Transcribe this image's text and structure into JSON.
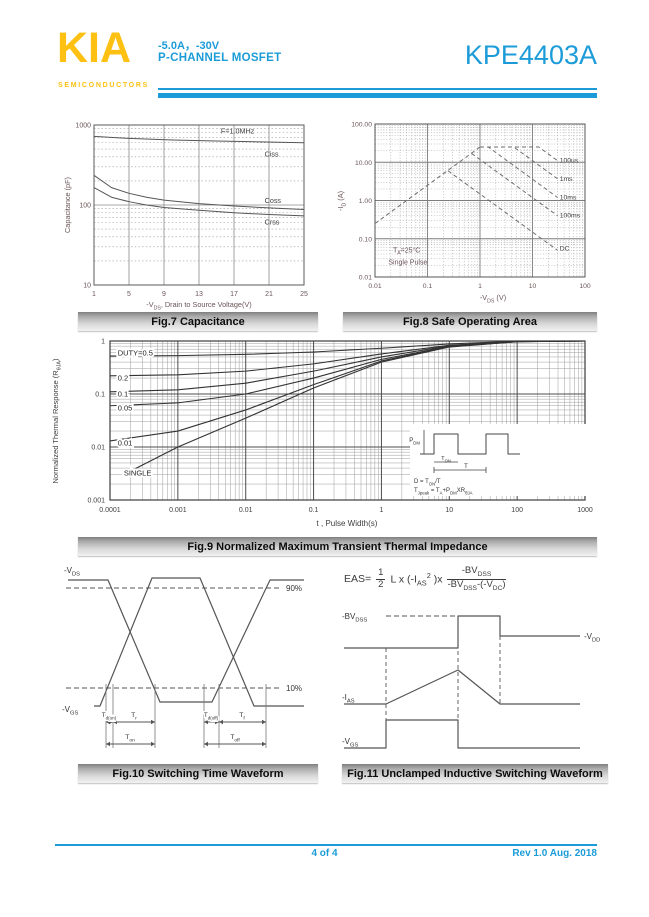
{
  "header": {
    "logo": "KIA",
    "logo_sub": "SEMICONDUCTORS",
    "spec_line1": "-5.0A，-30V",
    "spec_line2": "P-CHANNEL MOSFET",
    "part_number": "KPE4403A"
  },
  "footer": {
    "page": "4 of 4",
    "rev": "Rev 1.0 Aug. 2018"
  },
  "colors": {
    "accent": "#1b9cd8",
    "logo_yellow": "#fdc013",
    "grid_major": "#8a8a8a",
    "grid_minor": "#9a9a9a",
    "curve": "#555555",
    "tick_text": "#6b5558",
    "caption_text": "#0c0c0c"
  },
  "figures": {
    "fig7_caption": "Fig.7 Capacitance",
    "fig8_caption": "Fig.8 Safe Operating Area",
    "fig9_caption": "Fig.9 Normalized Maximum Transient Thermal Impedance",
    "fig10_caption": "Fig.10 Switching Time Waveform",
    "fig11_caption": "Fig.11 Unclamped Inductive Switching Waveform"
  },
  "chart_data": [
    {
      "id": "fig7",
      "type": "line",
      "title": "Fig.7 Capacitance",
      "xlabel": "-V_{DS}, Drain to Source Voltage(V)",
      "ylabel": "Capacitance (pF)",
      "xscale": "linear",
      "yscale": "log",
      "xlim": [
        1,
        25
      ],
      "ylim": [
        10,
        1000
      ],
      "xticks": [
        1,
        5,
        9,
        13,
        17,
        21,
        25
      ],
      "yticks": [
        "1000",
        "100",
        "10"
      ],
      "series": [
        {
          "name": "Ciss",
          "x": [
            1,
            5,
            10,
            15,
            20,
            25
          ],
          "y": [
            720,
            680,
            650,
            630,
            615,
            600
          ]
        },
        {
          "name": "Coss",
          "x": [
            1,
            3,
            5,
            7,
            9,
            13,
            17,
            21,
            25
          ],
          "y": [
            235,
            165,
            140,
            125,
            115,
            104,
            97,
            92,
            88
          ]
        },
        {
          "name": "Crss",
          "x": [
            1,
            3,
            5,
            7,
            9,
            13,
            17,
            21,
            25
          ],
          "y": [
            165,
            125,
            110,
            100,
            93,
            86,
            80,
            76,
            73
          ]
        }
      ],
      "labels": [
        {
          "text": "F=1.0MHz",
          "x": 15.5,
          "y": 830
        },
        {
          "text": "Ciss",
          "x": 20.5,
          "y": 430
        },
        {
          "text": "Coss",
          "x": 20.5,
          "y": 113
        },
        {
          "text": "Crss",
          "x": 20.5,
          "y": 60
        }
      ]
    },
    {
      "id": "fig8",
      "type": "line",
      "title": "Fig.8 Safe Operating Area",
      "xlabel": "-V_{DS} (V)",
      "ylabel": "-I_{D} (A)",
      "xscale": "log",
      "yscale": "log",
      "xlim": [
        0.01,
        100
      ],
      "ylim": [
        0.01,
        100
      ],
      "xticks": [
        "0.01",
        "0.1",
        "1",
        "10",
        "100"
      ],
      "yticks": [
        "100.00",
        "10.00",
        "1.00",
        "0.10",
        "0.01"
      ],
      "annotation_lines": [
        "T_{A}=25°C",
        "Single Pulse"
      ],
      "series": [
        {
          "name": "limit",
          "x": [
            0.01,
            1
          ],
          "y": [
            0.25,
            25
          ]
        },
        {
          "name": "100us",
          "x": [
            1,
            13.2,
            30
          ],
          "y": [
            25,
            25,
            11
          ]
        },
        {
          "name": "1ms",
          "x": [
            1,
            4.4,
            30
          ],
          "y": [
            25,
            25,
            3.7
          ]
        },
        {
          "name": "10ms",
          "x": [
            1,
            1.44,
            30
          ],
          "y": [
            25,
            25,
            1.2
          ]
        },
        {
          "name": "100ms",
          "x": [
            0.69,
            30
          ],
          "y": [
            17,
            0.4
          ]
        },
        {
          "name": "DC",
          "x": [
            0.245,
            30
          ],
          "y": [
            6,
            0.05
          ]
        }
      ],
      "labels": [
        {
          "text": "100us",
          "x": 33,
          "y": 11
        },
        {
          "text": "1ms",
          "x": 33,
          "y": 3.7
        },
        {
          "text": "10ms",
          "x": 33,
          "y": 1.2
        },
        {
          "text": "100ms",
          "x": 33,
          "y": 0.4
        },
        {
          "text": "DC",
          "x": 33,
          "y": 0.055
        }
      ]
    },
    {
      "id": "fig9",
      "type": "line",
      "title": "Fig.9 Normalized Maximum Transient Thermal Impedance",
      "xlabel": "t , Pulse Width(s)",
      "ylabel": "Normalized Thermal Response (R_{θJA})",
      "xscale": "log",
      "yscale": "log",
      "xlim": [
        0.0001,
        1000
      ],
      "ylim": [
        0.001,
        1
      ],
      "xticks": [
        "0.0001",
        "0.001",
        "0.01",
        "0.1",
        "1",
        "10",
        "100",
        "1000"
      ],
      "yticks": [
        "1",
        "0.1",
        "0.01",
        "0.001"
      ],
      "series": [
        {
          "name": "DUTY=0.5",
          "x": [
            0.0001,
            0.001,
            0.01,
            0.1,
            1,
            10,
            100,
            1000
          ],
          "y": [
            0.52,
            0.53,
            0.56,
            0.62,
            0.73,
            0.88,
            0.99,
            1
          ]
        },
        {
          "name": "0.2",
          "x": [
            0.0001,
            0.001,
            0.01,
            0.1,
            1,
            10,
            100,
            1000
          ],
          "y": [
            0.22,
            0.23,
            0.27,
            0.37,
            0.57,
            0.83,
            0.98,
            1
          ]
        },
        {
          "name": "0.1",
          "x": [
            0.0001,
            0.001,
            0.01,
            0.1,
            1,
            10,
            100,
            1000
          ],
          "y": [
            0.11,
            0.12,
            0.16,
            0.27,
            0.5,
            0.81,
            0.98,
            1
          ]
        },
        {
          "name": "0.05",
          "x": [
            0.0001,
            0.001,
            0.01,
            0.1,
            1,
            10,
            100,
            1000
          ],
          "y": [
            0.06,
            0.068,
            0.1,
            0.2,
            0.45,
            0.79,
            0.97,
            1
          ]
        },
        {
          "name": "0.01",
          "x": [
            0.0001,
            0.001,
            0.01,
            0.1,
            1,
            10,
            100,
            1000
          ],
          "y": [
            0.013,
            0.02,
            0.05,
            0.15,
            0.42,
            0.78,
            0.97,
            1
          ]
        },
        {
          "name": "SINGLE",
          "x": [
            0.0002,
            0.001,
            0.01,
            0.1,
            1,
            10,
            100,
            1000
          ],
          "y": [
            0.0035,
            0.01,
            0.035,
            0.13,
            0.4,
            0.77,
            0.97,
            1
          ]
        }
      ],
      "labels": [
        {
          "text": "DUTY=0.5",
          "x": 0.00013,
          "y": 0.6
        },
        {
          "text": "0.2",
          "x": 0.00013,
          "y": 0.2
        },
        {
          "text": "0.1",
          "x": 0.00013,
          "y": 0.1
        },
        {
          "text": "0.05",
          "x": 0.00013,
          "y": 0.055
        },
        {
          "text": "0.01",
          "x": 0.00013,
          "y": 0.012
        },
        {
          "text": "SINGLE",
          "x": 0.00016,
          "y": 0.0032
        }
      ],
      "inset": {
        "pulse_label": "P_{DM}",
        "ton_label": "T_{ON}",
        "t_label": "T",
        "line1": "D = T_{ON}/T",
        "line2": "T_{Jpeak} = T_{A}+P_{DM}XR_{θJA}"
      }
    },
    {
      "id": "fig10",
      "type": "waveform",
      "title": "Fig.10 Switching Time Waveform",
      "labels": {
        "vds": "-V_{DS}",
        "vgs": "-V_{GS}",
        "p90": "90%",
        "p10": "10%",
        "tdon": "T_{d(on)}",
        "tr": "T_{r}",
        "ton": "T_{on}",
        "tdoff": "T_{d(off)}",
        "tf": "T_{f}",
        "toff": "T_{off}"
      }
    },
    {
      "id": "fig11",
      "type": "waveform",
      "title": "Fig.11 Unclamped Inductive Switching Waveform",
      "formula": {
        "lhs": "EAS=",
        "frac1_num": "1",
        "frac1_den": "2",
        "mid": "L x (-I_{AS}^{2} )x",
        "frac2_num": "-BV_{DSS}",
        "frac2_den": "-BV_{DSS}-(-V_{DC})"
      },
      "labels": {
        "bvdss": "-BV_{DSS}",
        "vdd": "-V_{DD}",
        "ias": "-I_{AS}",
        "vgs": "-V_{GS}"
      }
    }
  ]
}
